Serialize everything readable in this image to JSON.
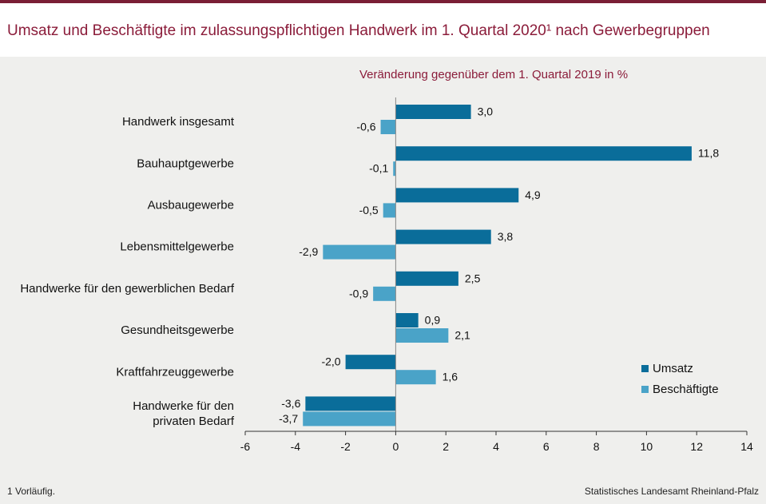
{
  "title": "Umsatz und Beschäftigte im zulassungspflichtigen Handwerk im 1. Quartal 2020¹ nach Gewerbegruppen",
  "footnote": "1 Vorläufig.",
  "source": "Statistisches Landesamt Rheinland-Pfalz",
  "colors": {
    "umsatz": "#0a6d9a",
    "beschaeftigte": "#4aa3c8",
    "title": "#8b1c3a"
  },
  "chart_data": {
    "type": "bar",
    "orientation": "horizontal",
    "subtitle": "Veränderung gegenüber dem 1. Quartal 2019 in %",
    "categories": [
      [
        "Handwerk insgesamt"
      ],
      [
        "Bauhauptgewerbe"
      ],
      [
        "Ausbaugewerbe"
      ],
      [
        "Lebensmittelgewerbe"
      ],
      [
        "Handwerke für den gewerblichen Bedarf"
      ],
      [
        "Gesundheitsgewerbe"
      ],
      [
        "Kraftfahrzeuggewerbe"
      ],
      [
        "Handwerke für den",
        "privaten Bedarf"
      ]
    ],
    "series": [
      {
        "name": "Umsatz",
        "values": [
          3.0,
          11.8,
          4.9,
          3.8,
          2.5,
          0.9,
          -2.0,
          -3.6
        ],
        "labels": [
          "3,0",
          "11,8",
          "4,9",
          "3,8",
          "2,5",
          "0,9",
          "-2,0",
          "-3,6"
        ]
      },
      {
        "name": "Beschäftigte",
        "values": [
          -0.6,
          -0.1,
          -0.5,
          -2.9,
          -0.9,
          2.1,
          1.6,
          -3.7
        ],
        "labels": [
          "-0,6",
          "-0,1",
          "-0,5",
          "-2,9",
          "-0,9",
          "2,1",
          "1,6",
          "-3,7"
        ]
      }
    ],
    "xlim": [
      -6,
      14
    ],
    "xticks": [
      -6,
      -4,
      -2,
      0,
      2,
      4,
      6,
      8,
      10,
      12,
      14
    ],
    "legend": "right",
    "grid": false
  }
}
